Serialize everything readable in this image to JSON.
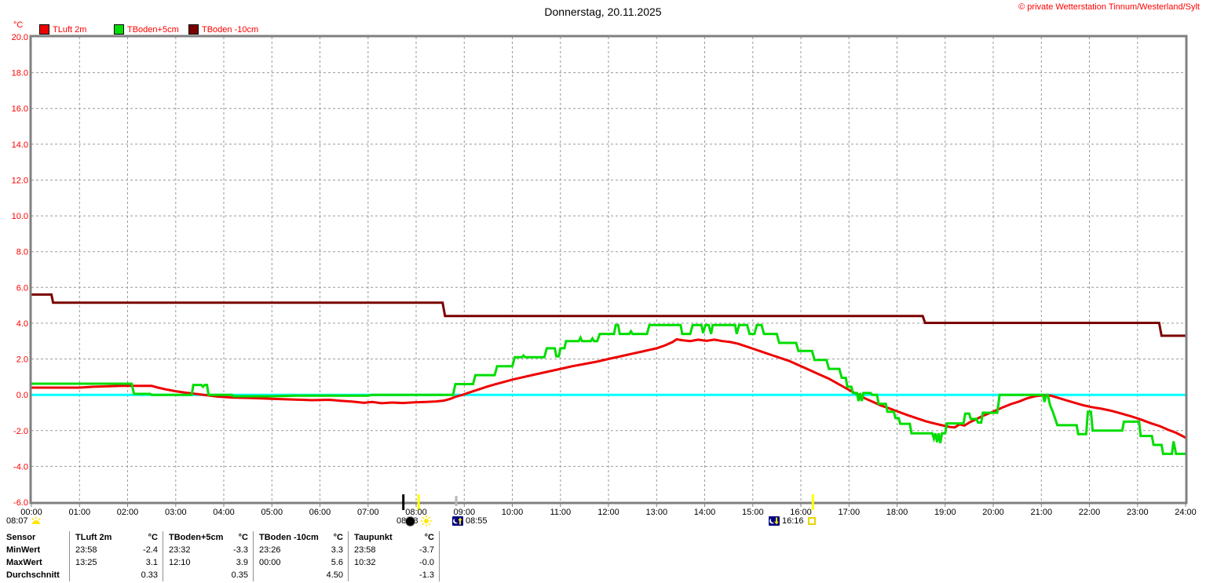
{
  "header": {
    "title": "Donnerstag, 20.11.2025",
    "copyright": "© private Wetterstation Tinnum/Westerland/Sylt"
  },
  "legend": {
    "unit": "°C",
    "items": [
      {
        "label": "TLuft 2m",
        "series_index": 0
      },
      {
        "label": "TBoden+5cm",
        "series_index": 1
      },
      {
        "label": "TBoden -10cm",
        "series_index": 2
      }
    ]
  },
  "markers": [
    {
      "time": "08:07",
      "icon": "sunrise"
    },
    {
      "time": "08:08",
      "icon": "new-moon-and-sun"
    },
    {
      "time": "08:55",
      "icon": "moonrise"
    },
    {
      "time": "16:16",
      "icon": "moonset"
    }
  ],
  "chart_data": {
    "type": "line",
    "title": "Donnerstag, 20.11.2025",
    "xlabel": "",
    "ylabel": "°C",
    "ylim": [
      -6,
      20
    ],
    "xlim_hours": [
      0,
      24
    ],
    "grid": {
      "x_step_hours": 1,
      "y_step": 2,
      "style": "dashed"
    },
    "zero_line_color": "#00ffff",
    "colors": {
      "grid": "#9a9a9a",
      "border": "#808080",
      "axis_text": "#ff0000",
      "x_axis_text": "#000000"
    },
    "y_ticks": [
      "20.0",
      "18.0",
      "16.0",
      "14.0",
      "12.0",
      "10.0",
      "8.0",
      "6.0",
      "4.0",
      "2.0",
      "0.0",
      "-2.0",
      "-4.0",
      "-6.0"
    ],
    "x_ticks": [
      "00:00",
      "01:00",
      "02:00",
      "03:00",
      "04:00",
      "05:00",
      "06:00",
      "07:00",
      "08:00",
      "09:00",
      "10:00",
      "11:00",
      "12:00",
      "13:00",
      "14:00",
      "15:00",
      "16:00",
      "17:00",
      "18:00",
      "19:00",
      "20:00",
      "21:00",
      "22:00",
      "23:00",
      "24:00"
    ],
    "event_ticks": [
      {
        "minute": 464,
        "color": "#000000",
        "tall": true
      },
      {
        "minute": 483,
        "color": "#ffff00",
        "tall": true
      },
      {
        "minute": 530,
        "color": "#b8b8b8",
        "tall": false
      },
      {
        "minute": 975,
        "color": "#ffff00",
        "tall": true
      }
    ],
    "series": [
      {
        "name": "TLuft 2m",
        "color": "#ee0000",
        "points": [
          [
            0,
            0.4
          ],
          [
            60,
            0.4
          ],
          [
            77,
            0.45
          ],
          [
            112,
            0.5
          ],
          [
            150,
            0.5
          ],
          [
            158,
            0.4
          ],
          [
            168,
            0.3
          ],
          [
            180,
            0.2
          ],
          [
            192,
            0.12
          ],
          [
            205,
            0.05
          ],
          [
            218,
            -0.02
          ],
          [
            232,
            -0.1
          ],
          [
            250,
            -0.15
          ],
          [
            275,
            -0.18
          ],
          [
            300,
            -0.22
          ],
          [
            325,
            -0.26
          ],
          [
            350,
            -0.3
          ],
          [
            372,
            -0.28
          ],
          [
            385,
            -0.33
          ],
          [
            400,
            -0.38
          ],
          [
            415,
            -0.45
          ],
          [
            425,
            -0.4
          ],
          [
            437,
            -0.47
          ],
          [
            450,
            -0.43
          ],
          [
            463,
            -0.46
          ],
          [
            478,
            -0.42
          ],
          [
            492,
            -0.4
          ],
          [
            505,
            -0.37
          ],
          [
            515,
            -0.32
          ],
          [
            523,
            -0.22
          ],
          [
            530,
            -0.1
          ],
          [
            538,
            0.0
          ],
          [
            548,
            0.15
          ],
          [
            558,
            0.3
          ],
          [
            568,
            0.45
          ],
          [
            578,
            0.58
          ],
          [
            588,
            0.7
          ],
          [
            600,
            0.85
          ],
          [
            615,
            1.0
          ],
          [
            630,
            1.15
          ],
          [
            645,
            1.3
          ],
          [
            660,
            1.45
          ],
          [
            675,
            1.6
          ],
          [
            690,
            1.72
          ],
          [
            705,
            1.85
          ],
          [
            720,
            2.0
          ],
          [
            735,
            2.15
          ],
          [
            750,
            2.3
          ],
          [
            762,
            2.42
          ],
          [
            772,
            2.52
          ],
          [
            780,
            2.6
          ],
          [
            790,
            2.75
          ],
          [
            800,
            2.95
          ],
          [
            805,
            3.1
          ],
          [
            812,
            3.05
          ],
          [
            822,
            3.0
          ],
          [
            832,
            3.08
          ],
          [
            842,
            3.02
          ],
          [
            852,
            3.08
          ],
          [
            862,
            3.0
          ],
          [
            872,
            2.95
          ],
          [
            882,
            2.85
          ],
          [
            892,
            2.7
          ],
          [
            902,
            2.55
          ],
          [
            915,
            2.35
          ],
          [
            925,
            2.2
          ],
          [
            935,
            2.05
          ],
          [
            945,
            1.9
          ],
          [
            955,
            1.7
          ],
          [
            965,
            1.5
          ],
          [
            975,
            1.3
          ],
          [
            985,
            1.1
          ],
          [
            995,
            0.9
          ],
          [
            1005,
            0.65
          ],
          [
            1015,
            0.4
          ],
          [
            1025,
            0.15
          ],
          [
            1032,
            0.0
          ],
          [
            1040,
            -0.2
          ],
          [
            1050,
            -0.4
          ],
          [
            1060,
            -0.6
          ],
          [
            1070,
            -0.75
          ],
          [
            1080,
            -0.92
          ],
          [
            1092,
            -1.12
          ],
          [
            1104,
            -1.3
          ],
          [
            1116,
            -1.48
          ],
          [
            1128,
            -1.62
          ],
          [
            1138,
            -1.72
          ],
          [
            1146,
            -1.8
          ],
          [
            1152,
            -1.82
          ],
          [
            1158,
            -1.65
          ],
          [
            1164,
            -1.72
          ],
          [
            1170,
            -1.55
          ],
          [
            1178,
            -1.38
          ],
          [
            1186,
            -1.2
          ],
          [
            1194,
            -1.05
          ],
          [
            1202,
            -0.9
          ],
          [
            1212,
            -0.7
          ],
          [
            1222,
            -0.52
          ],
          [
            1232,
            -0.38
          ],
          [
            1242,
            -0.2
          ],
          [
            1252,
            -0.08
          ],
          [
            1262,
            -0.03
          ],
          [
            1272,
            -0.05
          ],
          [
            1282,
            -0.18
          ],
          [
            1292,
            -0.32
          ],
          [
            1302,
            -0.45
          ],
          [
            1312,
            -0.58
          ],
          [
            1322,
            -0.68
          ],
          [
            1335,
            -0.78
          ],
          [
            1348,
            -0.9
          ],
          [
            1360,
            -1.05
          ],
          [
            1372,
            -1.2
          ],
          [
            1384,
            -1.38
          ],
          [
            1396,
            -1.58
          ],
          [
            1408,
            -1.75
          ],
          [
            1418,
            -1.95
          ],
          [
            1428,
            -2.12
          ],
          [
            1436,
            -2.3
          ],
          [
            1440,
            -2.4
          ]
        ]
      },
      {
        "name": "TBoden+5cm",
        "color": "#00dd00",
        "points": [
          [
            0,
            0.62
          ],
          [
            125,
            0.62
          ],
          [
            128,
            0.05
          ],
          [
            148,
            0.05
          ],
          [
            150,
            0.0
          ],
          [
            200,
            0.0
          ],
          [
            202,
            0.55
          ],
          [
            212,
            0.55
          ],
          [
            214,
            0.45
          ],
          [
            216,
            0.55
          ],
          [
            219,
            0.55
          ],
          [
            221,
            0.0
          ],
          [
            250,
            0.0
          ],
          [
            252,
            -0.08
          ],
          [
            300,
            -0.08
          ],
          [
            330,
            -0.05
          ],
          [
            420,
            -0.05
          ],
          [
            425,
            0.0
          ],
          [
            526,
            0.0
          ],
          [
            529,
            0.6
          ],
          [
            551,
            0.6
          ],
          [
            554,
            1.1
          ],
          [
            578,
            1.1
          ],
          [
            581,
            1.6
          ],
          [
            600,
            1.6
          ],
          [
            603,
            2.1
          ],
          [
            612,
            2.1
          ],
          [
            614,
            2.2
          ],
          [
            616,
            2.1
          ],
          [
            640,
            2.1
          ],
          [
            643,
            2.6
          ],
          [
            653,
            2.6
          ],
          [
            655,
            2.15
          ],
          [
            658,
            2.15
          ],
          [
            660,
            2.6
          ],
          [
            665,
            2.6
          ],
          [
            667,
            3.0
          ],
          [
            683,
            3.0
          ],
          [
            685,
            3.2
          ],
          [
            687,
            3.0
          ],
          [
            698,
            3.0
          ],
          [
            700,
            3.15
          ],
          [
            702,
            3.0
          ],
          [
            706,
            3.0
          ],
          [
            709,
            3.4
          ],
          [
            727,
            3.4
          ],
          [
            729,
            3.9
          ],
          [
            732,
            3.9
          ],
          [
            734,
            3.4
          ],
          [
            746,
            3.4
          ],
          [
            748,
            3.55
          ],
          [
            750,
            3.4
          ],
          [
            768,
            3.4
          ],
          [
            771,
            3.9
          ],
          [
            810,
            3.9
          ],
          [
            812,
            3.4
          ],
          [
            822,
            3.4
          ],
          [
            825,
            3.9
          ],
          [
            836,
            3.9
          ],
          [
            838,
            3.45
          ],
          [
            841,
            3.9
          ],
          [
            845,
            3.9
          ],
          [
            848,
            3.4
          ],
          [
            850,
            3.9
          ],
          [
            878,
            3.9
          ],
          [
            880,
            3.4
          ],
          [
            883,
            3.9
          ],
          [
            893,
            3.9
          ],
          [
            896,
            3.4
          ],
          [
            902,
            3.4
          ],
          [
            905,
            3.9
          ],
          [
            911,
            3.9
          ],
          [
            914,
            3.4
          ],
          [
            930,
            3.4
          ],
          [
            933,
            2.9
          ],
          [
            954,
            2.9
          ],
          [
            957,
            2.45
          ],
          [
            974,
            2.45
          ],
          [
            977,
            1.95
          ],
          [
            992,
            1.95
          ],
          [
            995,
            1.45
          ],
          [
            1008,
            1.45
          ],
          [
            1011,
            0.95
          ],
          [
            1016,
            0.95
          ],
          [
            1018,
            0.45
          ],
          [
            1023,
            0.45
          ],
          [
            1025,
            0.1
          ],
          [
            1030,
            0.1
          ],
          [
            1032,
            -0.35
          ],
          [
            1034,
            0.1
          ],
          [
            1036,
            -0.35
          ],
          [
            1038,
            0.1
          ],
          [
            1047,
            0.1
          ],
          [
            1049,
            0.0
          ],
          [
            1055,
            0.0
          ],
          [
            1057,
            -0.5
          ],
          [
            1066,
            -0.5
          ],
          [
            1068,
            -0.95
          ],
          [
            1076,
            -0.95
          ],
          [
            1078,
            -1.3
          ],
          [
            1082,
            -1.3
          ],
          [
            1084,
            -1.62
          ],
          [
            1096,
            -1.62
          ],
          [
            1098,
            -2.15
          ],
          [
            1124,
            -2.15
          ],
          [
            1126,
            -2.45
          ],
          [
            1128,
            -2.15
          ],
          [
            1130,
            -2.65
          ],
          [
            1132,
            -2.15
          ],
          [
            1134,
            -2.7
          ],
          [
            1136,
            -2.15
          ],
          [
            1140,
            -2.15
          ],
          [
            1142,
            -1.6
          ],
          [
            1163,
            -1.6
          ],
          [
            1165,
            -1.05
          ],
          [
            1170,
            -1.05
          ],
          [
            1172,
            -1.35
          ],
          [
            1179,
            -1.35
          ],
          [
            1181,
            -1.55
          ],
          [
            1185,
            -1.55
          ],
          [
            1187,
            -1.0
          ],
          [
            1205,
            -1.0
          ],
          [
            1208,
            0.0
          ],
          [
            1262,
            0.0
          ],
          [
            1264,
            -0.4
          ],
          [
            1266,
            0.0
          ],
          [
            1268,
            0.0
          ],
          [
            1271,
            -0.6
          ],
          [
            1274,
            -0.9
          ],
          [
            1277,
            -1.3
          ],
          [
            1280,
            -1.7
          ],
          [
            1304,
            -1.7
          ],
          [
            1306,
            -2.2
          ],
          [
            1316,
            -2.2
          ],
          [
            1318,
            -0.95
          ],
          [
            1322,
            -0.95
          ],
          [
            1324,
            -2.0
          ],
          [
            1361,
            -2.0
          ],
          [
            1363,
            -1.5
          ],
          [
            1382,
            -1.5
          ],
          [
            1384,
            -2.3
          ],
          [
            1398,
            -2.3
          ],
          [
            1400,
            -2.8
          ],
          [
            1410,
            -2.8
          ],
          [
            1412,
            -3.3
          ],
          [
            1423,
            -3.3
          ],
          [
            1425,
            -2.6
          ],
          [
            1428,
            -3.3
          ],
          [
            1440,
            -3.3
          ]
        ]
      },
      {
        "name": "TBoden -10cm",
        "color": "#7a0000",
        "points": [
          [
            0,
            5.6
          ],
          [
            25,
            5.6
          ],
          [
            27,
            5.15
          ],
          [
            513,
            5.15
          ],
          [
            516,
            4.4
          ],
          [
            1112,
            4.4
          ],
          [
            1115,
            4.02
          ],
          [
            1407,
            4.02
          ],
          [
            1410,
            3.3
          ],
          [
            1440,
            3.3
          ]
        ]
      }
    ]
  },
  "table": {
    "corner": "Sensor",
    "row_labels": [
      "MinWert",
      "MaxWert",
      "Durchschnitt"
    ],
    "columns": [
      {
        "name": "TLuft 2m",
        "unit": "°C",
        "min_time": "23:58",
        "min_value": "-2.4",
        "max_time": "13:25",
        "max_value": "3.1",
        "avg": "0.33"
      },
      {
        "name": "TBoden+5cm",
        "unit": "°C",
        "min_time": "23:32",
        "min_value": "-3.3",
        "max_time": "12:10",
        "max_value": "3.9",
        "avg": "0.35"
      },
      {
        "name": "TBoden -10cm",
        "unit": "°C",
        "min_time": "23:26",
        "min_value": "3.3",
        "max_time": "00:00",
        "max_value": "5.6",
        "avg": "4.50"
      },
      {
        "name": "Taupunkt",
        "unit": "°C",
        "min_time": "23:58",
        "min_value": "-3.7",
        "max_time": "10:32",
        "max_value": "-0.0",
        "avg": "-1.3"
      }
    ]
  }
}
